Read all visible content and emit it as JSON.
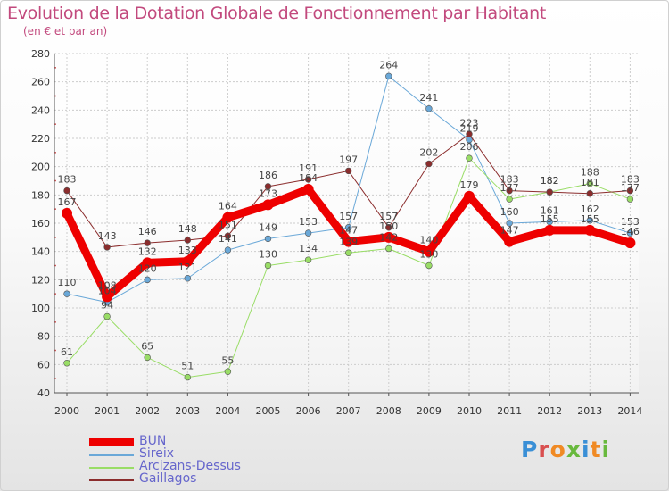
{
  "title": "Evolution de la Dotation Globale de Fonctionnement par Habitant",
  "subtitle": "(en € et par an)",
  "logo": {
    "text": "Proxiti"
  },
  "colors": {
    "title": "#c2497d",
    "axis": "#555555",
    "grid": "#cccccc",
    "tick_red": "#d05a5a",
    "legend_text": "#6666cc"
  },
  "chart_data": {
    "type": "line",
    "title": "Evolution de la Dotation Globale de Fonctionnement par Habitant",
    "subtitle": "(en € et par an)",
    "xlabel": "",
    "ylabel": "",
    "x": [
      "2000",
      "2001",
      "2002",
      "2003",
      "2004",
      "2005",
      "2006",
      "2007",
      "2008",
      "2009",
      "2010",
      "2011",
      "2012",
      "2013",
      "2014"
    ],
    "ylim": [
      40,
      280
    ],
    "yticks": [
      40,
      60,
      80,
      100,
      120,
      140,
      160,
      180,
      200,
      220,
      240,
      260,
      280
    ],
    "grid": true,
    "legend_position": "bottom-left",
    "series": [
      {
        "name": "BUN",
        "color": "#ee0000",
        "width": 9,
        "values": [
          167,
          108,
          132,
          133,
          164,
          173,
          184,
          147,
          150,
          140,
          179,
          147,
          155,
          155,
          146
        ],
        "labels": [
          167,
          108,
          132,
          133,
          164,
          173,
          184,
          147,
          150,
          140,
          179,
          147,
          155,
          155,
          146
        ]
      },
      {
        "name": "Sireix",
        "color": "#6aa8d8",
        "width": 1,
        "values": [
          110,
          104,
          120,
          121,
          141,
          149,
          153,
          157,
          264,
          241,
          219,
          160,
          161,
          162,
          153
        ],
        "labels": [
          110,
          104,
          120,
          121,
          141,
          149,
          153,
          157,
          264,
          241,
          219,
          160,
          161,
          162,
          153
        ]
      },
      {
        "name": "Arcizans-Dessus",
        "color": "#99dd66",
        "width": 1,
        "values": [
          61,
          94,
          65,
          51,
          55,
          130,
          134,
          139,
          142,
          130,
          206,
          177,
          182,
          188,
          177
        ],
        "labels": [
          61,
          94,
          65,
          51,
          55,
          130,
          134,
          139,
          142,
          130,
          206,
          177,
          182,
          188,
          177
        ]
      },
      {
        "name": "Gaillagos",
        "color": "#8b2d2d",
        "width": 1,
        "values": [
          183,
          143,
          146,
          148,
          151,
          186,
          191,
          197,
          157,
          202,
          223,
          183,
          182,
          181,
          183
        ],
        "labels": [
          183,
          143,
          146,
          148,
          151,
          186,
          191,
          197,
          157,
          202,
          223,
          183,
          182,
          181,
          183
        ]
      }
    ]
  }
}
